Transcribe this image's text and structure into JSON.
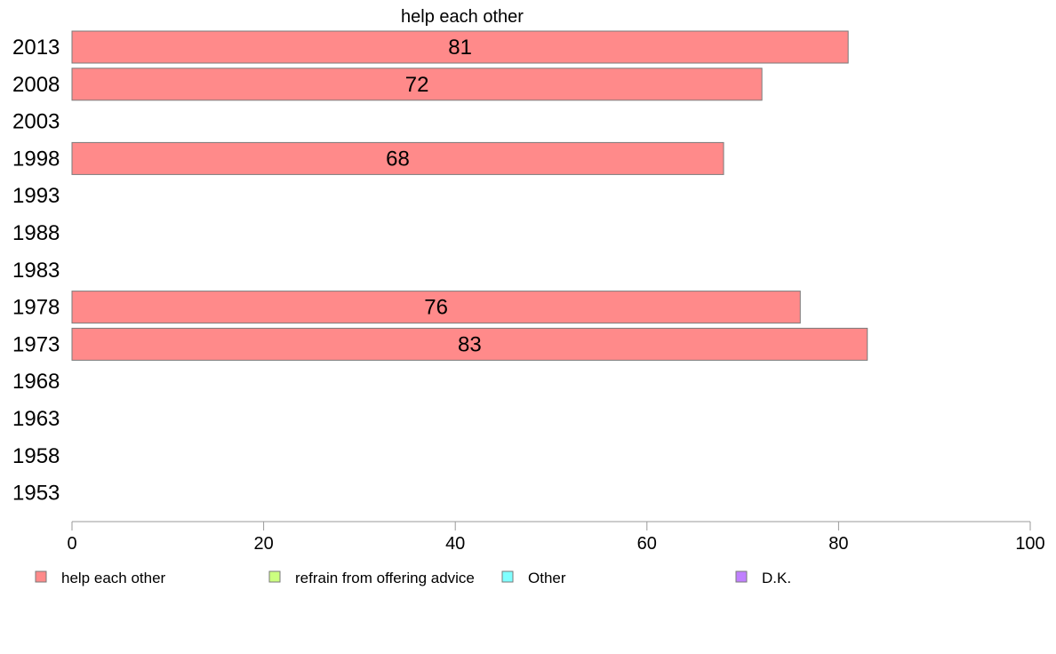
{
  "chart_data": {
    "type": "bar",
    "orientation": "horizontal",
    "title": "help each other",
    "categories": [
      "2013",
      "2008",
      "2003",
      "1998",
      "1993",
      "1988",
      "1983",
      "1978",
      "1973",
      "1968",
      "1963",
      "1958",
      "1953"
    ],
    "series": [
      {
        "name": "help each other",
        "color": "#ff8a8a",
        "values": [
          81,
          72,
          null,
          68,
          null,
          null,
          null,
          76,
          83,
          null,
          null,
          null,
          null
        ],
        "value_labels": [
          "81",
          "72",
          "",
          "68",
          "",
          "",
          "",
          "76",
          "83",
          "",
          "",
          "",
          ""
        ]
      }
    ],
    "xlim": [
      0,
      100
    ],
    "xticks": [
      "0",
      "20",
      "40",
      "60",
      "80",
      "100"
    ],
    "xlabel": "",
    "ylabel": "",
    "grid": false,
    "legend_position": "bottom",
    "legend": [
      {
        "label": "help each other",
        "color": "#ff8a8a"
      },
      {
        "label": "refrain from offering advice",
        "color": "#ccff80"
      },
      {
        "label": "Other",
        "color": "#80ffff"
      },
      {
        "label": "D.K.",
        "color": "#c080ff"
      }
    ]
  }
}
